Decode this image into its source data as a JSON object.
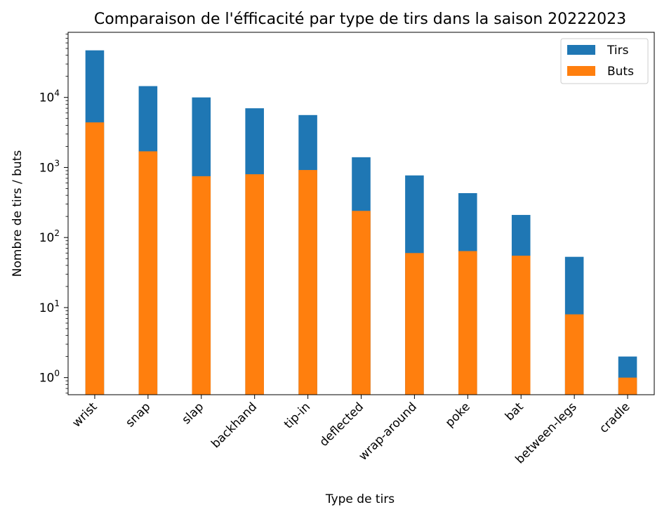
{
  "chart_data": {
    "type": "bar",
    "title": "Comparaison de l'éfficacité par type de tirs dans la saison 20222023",
    "xlabel": "Type de tirs",
    "ylabel": "Nombre de tirs / buts",
    "yscale": "log",
    "ylim": [
      0.57,
      85000
    ],
    "y_ticks": [
      {
        "value": 1,
        "base": "10",
        "exp": "0"
      },
      {
        "value": 10,
        "base": "10",
        "exp": "1"
      },
      {
        "value": 100,
        "base": "10",
        "exp": "2"
      },
      {
        "value": 1000,
        "base": "10",
        "exp": "3"
      },
      {
        "value": 10000,
        "base": "10",
        "exp": "4"
      }
    ],
    "categories": [
      "wrist",
      "snap",
      "slap",
      "backhand",
      "tip-in",
      "deflected",
      "wrap-around",
      "poke",
      "bat",
      "between-legs",
      "cradle"
    ],
    "series": [
      {
        "name": "Tirs",
        "color": "#1f77b4",
        "values": [
          47000,
          14500,
          10000,
          7000,
          5600,
          1400,
          770,
          430,
          210,
          53,
          2
        ]
      },
      {
        "name": "Buts",
        "color": "#ff7f0e",
        "values": [
          4400,
          1700,
          750,
          800,
          920,
          240,
          60,
          64,
          55,
          8,
          1
        ]
      }
    ],
    "legend": {
      "position": "top-right"
    },
    "grid": false
  }
}
